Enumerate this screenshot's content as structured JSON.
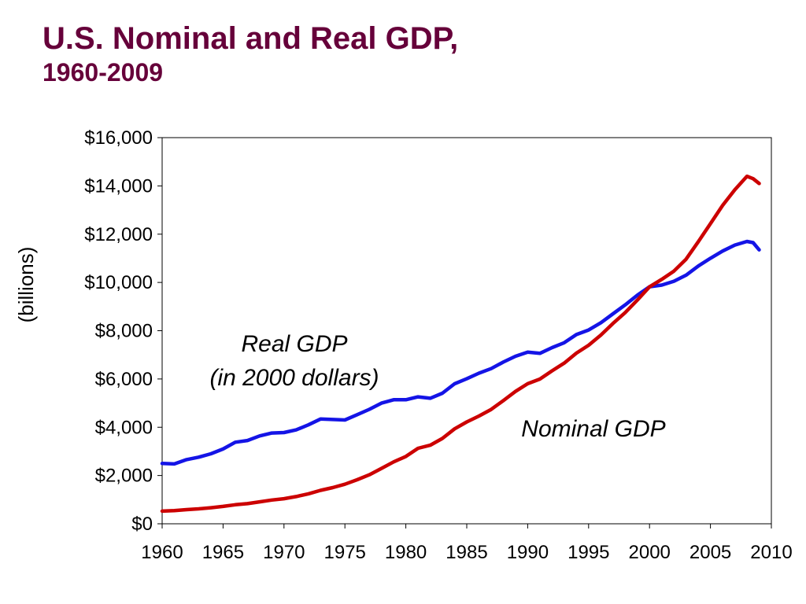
{
  "slide": {
    "title_line1": "U.S. Nominal and Real GDP,",
    "title_line2": "1960-2009"
  },
  "colors": {
    "title": "#66003a",
    "real": "#1414e6",
    "nominal": "#cc0000"
  },
  "chart_data": {
    "type": "line",
    "title": "U.S. Nominal and Real GDP, 1960-2009",
    "xlabel": "",
    "ylabel": "(billions)",
    "xlim": [
      1960,
      2010
    ],
    "ylim": [
      0,
      16000
    ],
    "x_ticks": [
      "1960",
      "1965",
      "1970",
      "1975",
      "1980",
      "1985",
      "1990",
      "1995",
      "2000",
      "2005",
      "2010"
    ],
    "y_ticks": [
      "$0",
      "$2,000",
      "$4,000",
      "$6,000",
      "$8,000",
      "$10,000",
      "$12,000",
      "$14,000",
      "$16,000"
    ],
    "grid": false,
    "annotations": [
      {
        "lines": [
          "Real GDP",
          "(in 2000 dollars)"
        ],
        "series": "Real GDP"
      },
      {
        "lines": [
          "Nominal GDP"
        ],
        "series": "Nominal GDP"
      }
    ],
    "series": [
      {
        "name": "Real GDP",
        "color": "#1414e6",
        "points": [
          [
            1960,
            2500
          ],
          [
            1961,
            2480
          ],
          [
            1962,
            2660
          ],
          [
            1963,
            2760
          ],
          [
            1964,
            2900
          ],
          [
            1965,
            3100
          ],
          [
            1966,
            3380
          ],
          [
            1967,
            3450
          ],
          [
            1968,
            3640
          ],
          [
            1969,
            3760
          ],
          [
            1970,
            3780
          ],
          [
            1971,
            3890
          ],
          [
            1972,
            4100
          ],
          [
            1973,
            4340
          ],
          [
            1974,
            4320
          ],
          [
            1975,
            4300
          ],
          [
            1976,
            4520
          ],
          [
            1977,
            4740
          ],
          [
            1978,
            5000
          ],
          [
            1979,
            5140
          ],
          [
            1980,
            5140
          ],
          [
            1981,
            5260
          ],
          [
            1982,
            5200
          ],
          [
            1983,
            5410
          ],
          [
            1984,
            5800
          ],
          [
            1985,
            6010
          ],
          [
            1986,
            6240
          ],
          [
            1987,
            6430
          ],
          [
            1988,
            6700
          ],
          [
            1989,
            6940
          ],
          [
            1990,
            7110
          ],
          [
            1991,
            7060
          ],
          [
            1992,
            7300
          ],
          [
            1993,
            7500
          ],
          [
            1994,
            7840
          ],
          [
            1995,
            8030
          ],
          [
            1996,
            8330
          ],
          [
            1997,
            8700
          ],
          [
            1998,
            9070
          ],
          [
            1999,
            9470
          ],
          [
            2000,
            9820
          ],
          [
            2001,
            9890
          ],
          [
            2002,
            10050
          ],
          [
            2003,
            10300
          ],
          [
            2004,
            10680
          ],
          [
            2005,
            11000
          ],
          [
            2006,
            11300
          ],
          [
            2007,
            11550
          ],
          [
            2008,
            11700
          ],
          [
            2008.5,
            11650
          ],
          [
            2009,
            11350
          ]
        ]
      },
      {
        "name": "Nominal GDP",
        "color": "#cc0000",
        "points": [
          [
            1960,
            526
          ],
          [
            1961,
            545
          ],
          [
            1962,
            585
          ],
          [
            1963,
            618
          ],
          [
            1964,
            664
          ],
          [
            1965,
            719
          ],
          [
            1966,
            788
          ],
          [
            1967,
            833
          ],
          [
            1968,
            910
          ],
          [
            1969,
            985
          ],
          [
            1970,
            1040
          ],
          [
            1971,
            1128
          ],
          [
            1972,
            1240
          ],
          [
            1973,
            1385
          ],
          [
            1974,
            1500
          ],
          [
            1975,
            1638
          ],
          [
            1976,
            1825
          ],
          [
            1977,
            2030
          ],
          [
            1978,
            2294
          ],
          [
            1979,
            2563
          ],
          [
            1980,
            2790
          ],
          [
            1981,
            3128
          ],
          [
            1982,
            3255
          ],
          [
            1983,
            3536
          ],
          [
            1984,
            3933
          ],
          [
            1985,
            4220
          ],
          [
            1986,
            4463
          ],
          [
            1987,
            4739
          ],
          [
            1988,
            5104
          ],
          [
            1989,
            5484
          ],
          [
            1990,
            5803
          ],
          [
            1991,
            5996
          ],
          [
            1992,
            6338
          ],
          [
            1993,
            6657
          ],
          [
            1994,
            7072
          ],
          [
            1995,
            7398
          ],
          [
            1996,
            7817
          ],
          [
            1997,
            8304
          ],
          [
            1998,
            8747
          ],
          [
            1999,
            9268
          ],
          [
            2000,
            9817
          ],
          [
            2001,
            10128
          ],
          [
            2002,
            10470
          ],
          [
            2003,
            10961
          ],
          [
            2004,
            11686
          ],
          [
            2005,
            12434
          ],
          [
            2006,
            13195
          ],
          [
            2007,
            13842
          ],
          [
            2008,
            14400
          ],
          [
            2008.5,
            14300
          ],
          [
            2009,
            14100
          ]
        ]
      }
    ]
  }
}
